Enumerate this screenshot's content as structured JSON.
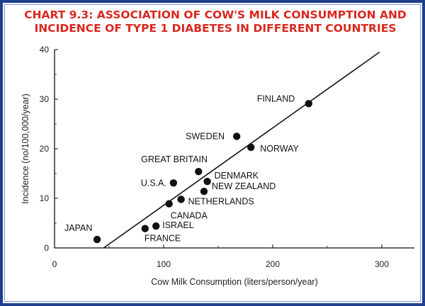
{
  "title": {
    "line1": "CHART 9.3: ASSOCIATION OF COW'S MILK CONSUMPTION AND",
    "line2": "INCIDENCE OF TYPE 1 DIABETES IN DIFFERENT COUNTRIES"
  },
  "colors": {
    "title": "#d9281f",
    "border": "#1f3f8f",
    "marks": "#111111"
  },
  "chart_data": {
    "type": "scatter",
    "title": "CHART 9.3: ASSOCIATION OF COW'S MILK CONSUMPTION AND INCIDENCE OF TYPE 1 DIABETES IN DIFFERENT COUNTRIES",
    "xlabel": "Cow Milk Consumption (liters/person/year)",
    "ylabel": "Incidence (no/100,000/year)",
    "xlim": [
      0,
      320
    ],
    "ylim": [
      0,
      40
    ],
    "xticks": [
      0,
      100,
      200,
      300
    ],
    "yticks": [
      0,
      10,
      20,
      30,
      40
    ],
    "grid": false,
    "points": [
      {
        "label": "JAPAN",
        "x": 39,
        "y": 1.7
      },
      {
        "label": "FRANCE",
        "x": 83,
        "y": 3.9
      },
      {
        "label": "ISRAEL",
        "x": 93,
        "y": 4.4
      },
      {
        "label": "CANADA",
        "x": 105,
        "y": 8.9
      },
      {
        "label": "U.S.A.",
        "x": 109,
        "y": 13.1
      },
      {
        "label": "NETHERLANDS",
        "x": 116,
        "y": 9.8
      },
      {
        "label": "GREAT BRITAIN",
        "x": 132,
        "y": 15.4
      },
      {
        "label": "NEW ZEALAND",
        "x": 137,
        "y": 11.4
      },
      {
        "label": "DENMARK",
        "x": 140,
        "y": 13.4
      },
      {
        "label": "SWEDEN",
        "x": 167,
        "y": 22.5
      },
      {
        "label": "NORWAY",
        "x": 180,
        "y": 20.3
      },
      {
        "label": "FINLAND",
        "x": 233,
        "y": 29.1
      }
    ],
    "trendline": {
      "x": [
        45,
        298
      ],
      "y": [
        0,
        39.5
      ]
    }
  }
}
